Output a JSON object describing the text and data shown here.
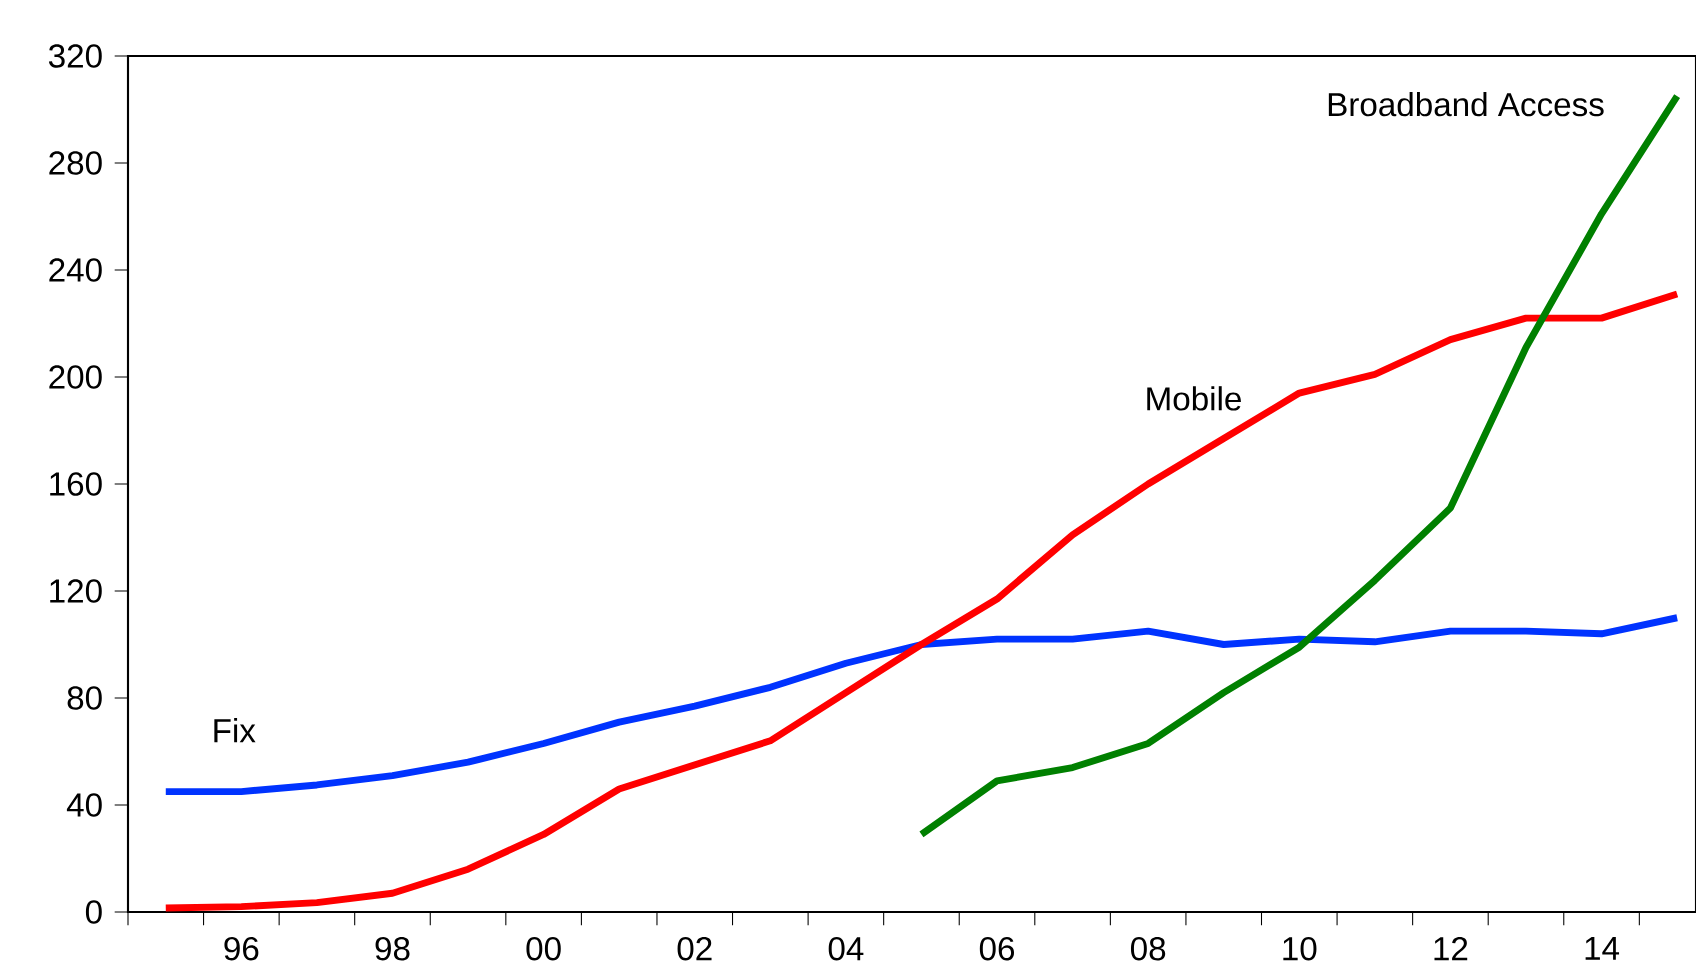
{
  "chart_data": {
    "type": "line",
    "x": [
      1995,
      1996,
      1997,
      1998,
      1999,
      2000,
      2001,
      2002,
      2003,
      2004,
      2005,
      2006,
      2007,
      2008,
      2009,
      2010,
      2011,
      2012,
      2013,
      2014,
      2015
    ],
    "series": [
      {
        "name": "Fix",
        "color": "#0033ff",
        "values": [
          45,
          45,
          47.5,
          51,
          56,
          63,
          71,
          77,
          84,
          93,
          100,
          102,
          102,
          105,
          100,
          102,
          101,
          105,
          105,
          104,
          110
        ]
      },
      {
        "name": "Mobile",
        "color": "#ff0000",
        "values": [
          1.5,
          2,
          3.5,
          7,
          16,
          29,
          46,
          55,
          64,
          82,
          100,
          117,
          141,
          160,
          177,
          194,
          201,
          214,
          222,
          222,
          231
        ]
      },
      {
        "name": "Broadband Access",
        "color": "#008000",
        "values": [
          null,
          null,
          null,
          null,
          null,
          null,
          null,
          null,
          null,
          null,
          29,
          49,
          54,
          63,
          82,
          99,
          124,
          151,
          211,
          261,
          305
        ]
      }
    ],
    "xlim": [
      1994.5,
      2015.25
    ],
    "ylim": [
      0,
      320
    ],
    "xticks": [
      {
        "value": 1994.5,
        "label": null
      },
      {
        "value": 1995.5,
        "label": null
      },
      {
        "value": 1996,
        "label": "96"
      },
      {
        "value": 1996.5,
        "label": null
      },
      {
        "value": 1997.5,
        "label": null
      },
      {
        "value": 1998,
        "label": "98"
      },
      {
        "value": 1998.5,
        "label": null
      },
      {
        "value": 1999.5,
        "label": null
      },
      {
        "value": 2000,
        "label": "00"
      },
      {
        "value": 2000.5,
        "label": null
      },
      {
        "value": 2001.5,
        "label": null
      },
      {
        "value": 2002,
        "label": "02"
      },
      {
        "value": 2002.5,
        "label": null
      },
      {
        "value": 2003.5,
        "label": null
      },
      {
        "value": 2004,
        "label": "04"
      },
      {
        "value": 2004.5,
        "label": null
      },
      {
        "value": 2005.5,
        "label": null
      },
      {
        "value": 2006,
        "label": "06"
      },
      {
        "value": 2006.5,
        "label": null
      },
      {
        "value": 2007.5,
        "label": null
      },
      {
        "value": 2008,
        "label": "08"
      },
      {
        "value": 2008.5,
        "label": null
      },
      {
        "value": 2009.5,
        "label": null
      },
      {
        "value": 2010,
        "label": "10"
      },
      {
        "value": 2010.5,
        "label": null
      },
      {
        "value": 2011.5,
        "label": null
      },
      {
        "value": 2012,
        "label": "12"
      },
      {
        "value": 2012.5,
        "label": null
      },
      {
        "value": 2013.5,
        "label": null
      },
      {
        "value": 2014,
        "label": "14"
      },
      {
        "value": 2014.5,
        "label": null
      }
    ],
    "yticks": [
      0,
      40,
      80,
      120,
      160,
      200,
      240,
      280,
      320
    ],
    "grid": false,
    "legend": false,
    "marker": "none",
    "line_style": "solid"
  }
}
